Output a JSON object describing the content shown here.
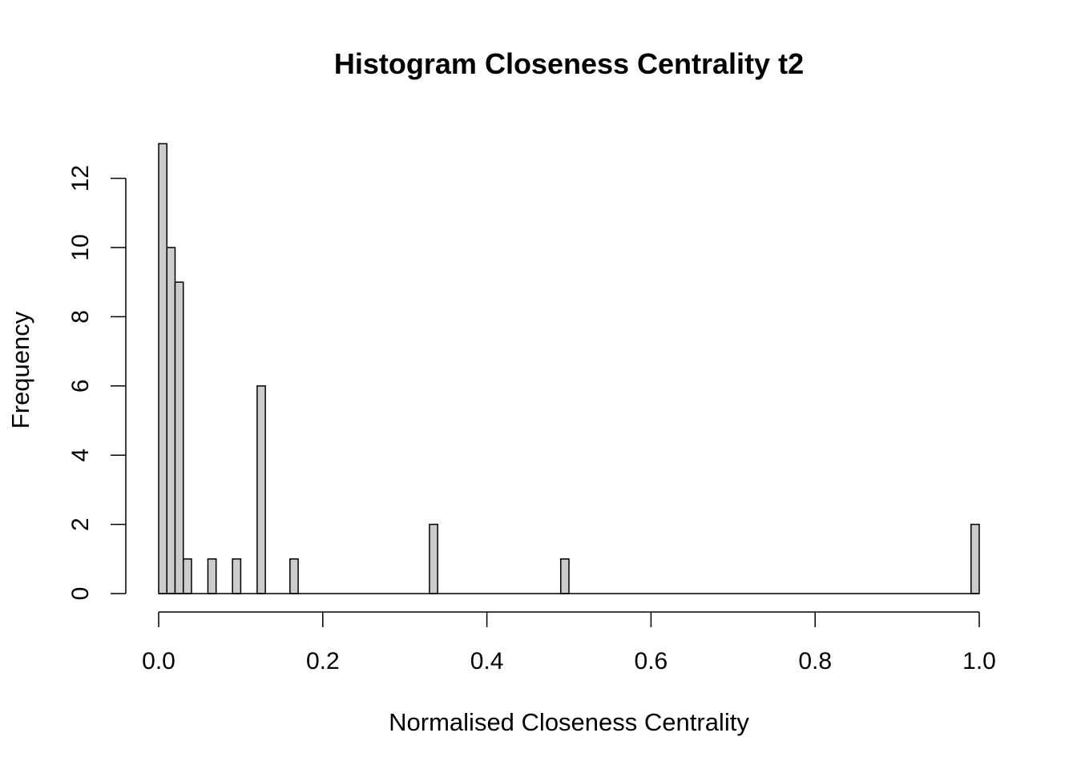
{
  "chart_data": {
    "type": "bar",
    "title": "Histogram Closeness Centrality t2",
    "xlabel": "Normalised Closeness Centrality",
    "ylabel": "Frequency",
    "xlim": [
      0,
      1
    ],
    "ylim": [
      0,
      13
    ],
    "x_ticks": [
      "0.0",
      "0.2",
      "0.4",
      "0.6",
      "0.8",
      "1.0"
    ],
    "y_ticks": [
      "0",
      "2",
      "4",
      "6",
      "8",
      "10",
      "12"
    ],
    "bin_width": 0.01,
    "bins": [
      {
        "start": 0.0,
        "end": 0.01,
        "value": 13
      },
      {
        "start": 0.01,
        "end": 0.02,
        "value": 10
      },
      {
        "start": 0.02,
        "end": 0.03,
        "value": 9
      },
      {
        "start": 0.03,
        "end": 0.04,
        "value": 1
      },
      {
        "start": 0.06,
        "end": 0.07,
        "value": 1
      },
      {
        "start": 0.09,
        "end": 0.1,
        "value": 1
      },
      {
        "start": 0.12,
        "end": 0.13,
        "value": 6
      },
      {
        "start": 0.16,
        "end": 0.17,
        "value": 1
      },
      {
        "start": 0.33,
        "end": 0.34,
        "value": 2
      },
      {
        "start": 0.49,
        "end": 0.5,
        "value": 1
      },
      {
        "start": 0.99,
        "end": 1.0,
        "value": 2
      }
    ],
    "bar_color": "#cccccc",
    "grid": false,
    "legend": "none"
  }
}
